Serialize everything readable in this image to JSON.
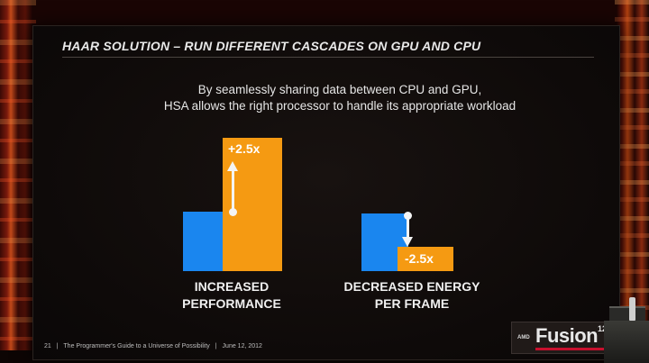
{
  "slide": {
    "title": "HAAR SOLUTION – RUN DIFFERENT CASCADES ON GPU AND CPU",
    "subtitle_line1": "By seamlessly sharing data between CPU and GPU,",
    "subtitle_line2": "HSA allows the right processor to handle its appropriate workload"
  },
  "graphs": {
    "performance": {
      "value_label": "+2.5x",
      "caption_line1": "INCREASED",
      "caption_line2": "PERFORMANCE"
    },
    "energy": {
      "value_label": "-2.5x",
      "caption_line1": "DECREASED ENERGY",
      "caption_line2": "PER FRAME"
    }
  },
  "footer": {
    "page_number": "21",
    "separator": "|",
    "text": "The Programmer's Guide to a Universe of Possibility",
    "date": "June 12, 2012"
  },
  "logo": {
    "amd": "AMD",
    "name": "Fusion",
    "year": "12"
  },
  "colors": {
    "cpu_bar": "#1a86ef",
    "gpu_bar": "#f59a12",
    "text": "#e6e6e6"
  }
}
